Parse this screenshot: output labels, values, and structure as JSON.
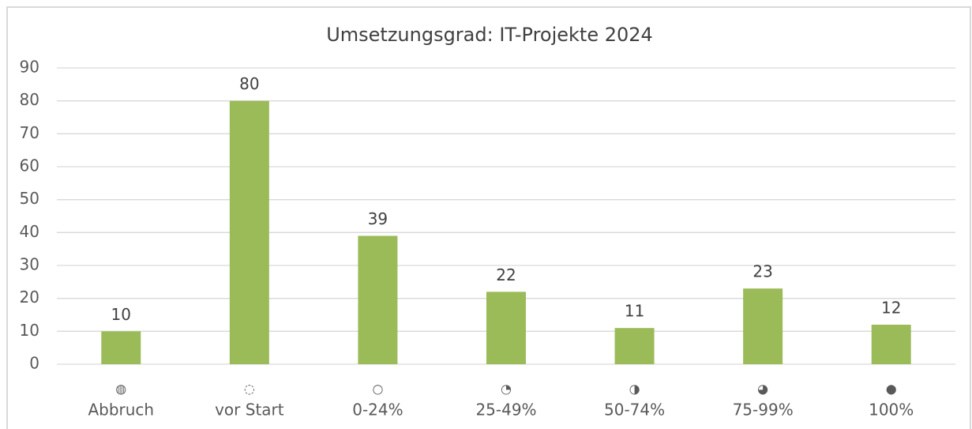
{
  "chart_data": {
    "type": "bar",
    "title": "Umsetzungsgrad: IT-Projekte 2024",
    "categories": [
      [
        "◍",
        "Abbruch"
      ],
      [
        "◌",
        "vor Start"
      ],
      [
        "○",
        "0-24%"
      ],
      [
        "◔",
        "25-49%"
      ],
      [
        "◑",
        "50-74%"
      ],
      [
        "◕",
        "75-99%"
      ],
      [
        "●",
        "100%"
      ]
    ],
    "values": [
      10,
      80,
      39,
      22,
      11,
      23,
      12
    ],
    "color": "#9bbb59",
    "ylim": [
      0,
      90
    ],
    "yticks": [
      0,
      10,
      20,
      30,
      40,
      50,
      60,
      70,
      80,
      90
    ],
    "grid": true
  }
}
